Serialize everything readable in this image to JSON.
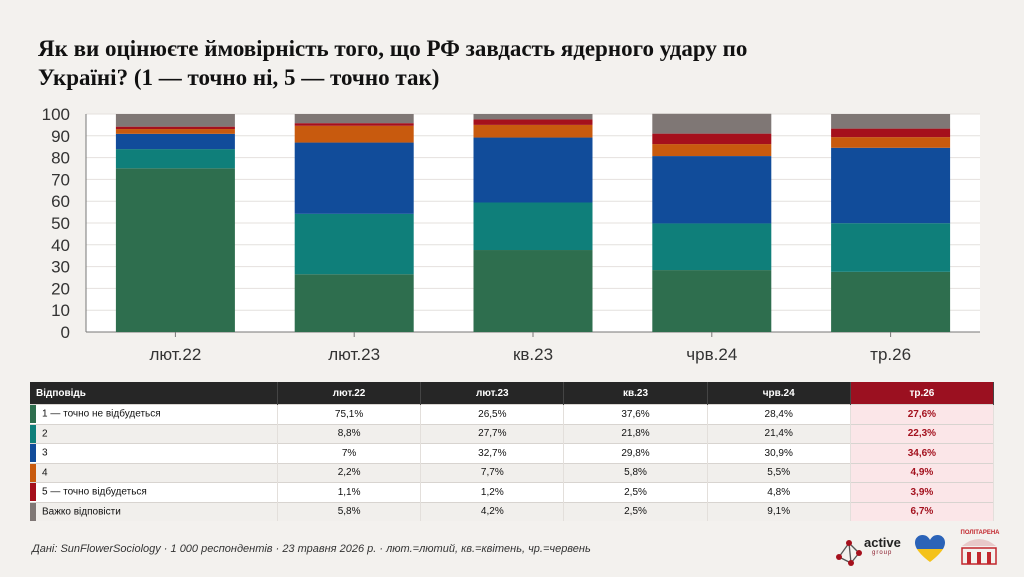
{
  "title": "Як ви оцінюєте ймовірність того, що РФ завдасть ядерного удару по Україні? (1 — точно ні, 5 — точно так)",
  "chart_data": {
    "type": "bar",
    "stacked": true,
    "categories": [
      "лют.22",
      "лют.23",
      "кв.23",
      "чрв.24",
      "тр.26"
    ],
    "ylim": [
      0,
      100
    ],
    "yticks": [
      0,
      10,
      20,
      30,
      40,
      50,
      60,
      70,
      80,
      90,
      100
    ],
    "grid": true,
    "series": [
      {
        "name": "1 — точно не відбудеться",
        "color": "#2e6e4e",
        "values": [
          75.1,
          26.5,
          37.6,
          28.4,
          27.6
        ]
      },
      {
        "name": "2",
        "color": "#0f7f7a",
        "values": [
          8.8,
          27.7,
          21.8,
          21.4,
          22.3
        ]
      },
      {
        "name": "3",
        "color": "#114c9a",
        "values": [
          7,
          32.7,
          29.8,
          30.9,
          34.6
        ]
      },
      {
        "name": "4",
        "color": "#c85a0e",
        "values": [
          2.2,
          7.7,
          5.8,
          5.5,
          4.9
        ]
      },
      {
        "name": "5 — точно відбудеться",
        "color": "#a5101c",
        "values": [
          1.1,
          1.2,
          2.5,
          4.8,
          3.9
        ]
      },
      {
        "name": "Важко відповісти",
        "color": "#7f7775",
        "values": [
          5.8,
          4.2,
          2.5,
          9.1,
          6.7
        ]
      }
    ]
  },
  "table": {
    "header": [
      "Відповідь",
      "лют.22",
      "лют.23",
      "кв.23",
      "чрв.24",
      "тр.26"
    ],
    "rows": [
      {
        "label": "1 — точно не відбудеться",
        "color": "#2e6e4e",
        "cells": [
          "75,1%",
          "26,5%",
          "37,6%",
          "28,4%",
          "27,6%"
        ]
      },
      {
        "label": "2",
        "color": "#0f7f7a",
        "cells": [
          "8,8%",
          "27,7%",
          "21,8%",
          "21,4%",
          "22,3%"
        ]
      },
      {
        "label": "3",
        "color": "#114c9a",
        "cells": [
          "7%",
          "32,7%",
          "29,8%",
          "30,9%",
          "34,6%"
        ]
      },
      {
        "label": "4",
        "color": "#c85a0e",
        "cells": [
          "2,2%",
          "7,7%",
          "5,8%",
          "5,5%",
          "4,9%"
        ]
      },
      {
        "label": "5 — точно відбудеться",
        "color": "#a5101c",
        "cells": [
          "1,1%",
          "1,2%",
          "2,5%",
          "4,8%",
          "3,9%"
        ]
      },
      {
        "label": "Важко відповісти",
        "color": "#7f7775",
        "cells": [
          "5,8%",
          "4,2%",
          "2,5%",
          "9,1%",
          "6,7%"
        ]
      }
    ]
  },
  "footer": "Дані: SunFlowerSociology · 1 000 респондентів · 23 травня 2026 р. · лют.=лютий, кв.=квітень, чр.=червень",
  "logos": {
    "active_name": "active",
    "active_sub": "group",
    "politarena": "ПОЛІТАРЕНА"
  }
}
